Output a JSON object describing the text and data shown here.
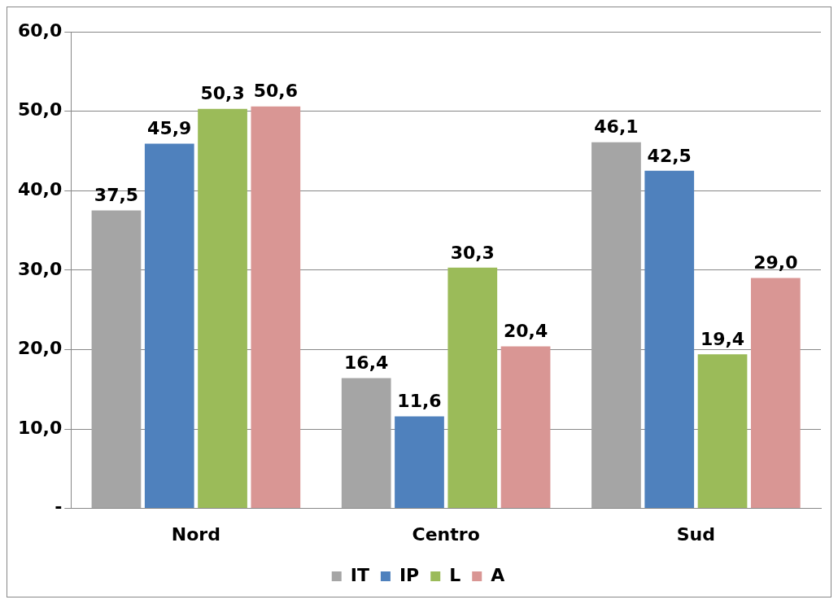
{
  "chart_data": {
    "type": "bar",
    "categories": [
      "Nord",
      "Centro",
      "Sud"
    ],
    "series": [
      {
        "name": "IT",
        "color": "#a5a5a5",
        "values": [
          37.5,
          16.4,
          46.1
        ],
        "value_labels": [
          "37,5",
          "16,4",
          "46,1"
        ]
      },
      {
        "name": "IP",
        "color": "#4f81bd",
        "values": [
          45.9,
          11.6,
          42.5
        ],
        "value_labels": [
          "45,9",
          "11,6",
          "42,5"
        ]
      },
      {
        "name": "L",
        "color": "#9bbb59",
        "values": [
          50.3,
          30.3,
          19.4
        ],
        "value_labels": [
          "50,3",
          "30,3",
          "19,4"
        ]
      },
      {
        "name": "A",
        "color": "#d99694",
        "values": [
          50.6,
          20.4,
          29.0
        ],
        "value_labels": [
          "50,6",
          "20,4",
          "29,0"
        ]
      }
    ],
    "ylim": [
      0,
      60
    ],
    "yticks": [
      {
        "value": 0,
        "label": "-"
      },
      {
        "value": 10,
        "label": "10,0"
      },
      {
        "value": 20,
        "label": "20,0"
      },
      {
        "value": 30,
        "label": "30,0"
      },
      {
        "value": 40,
        "label": "40,0"
      },
      {
        "value": 50,
        "label": "50,0"
      },
      {
        "value": 60,
        "label": "60,0"
      }
    ],
    "grid": "y",
    "legend": "bottom"
  }
}
